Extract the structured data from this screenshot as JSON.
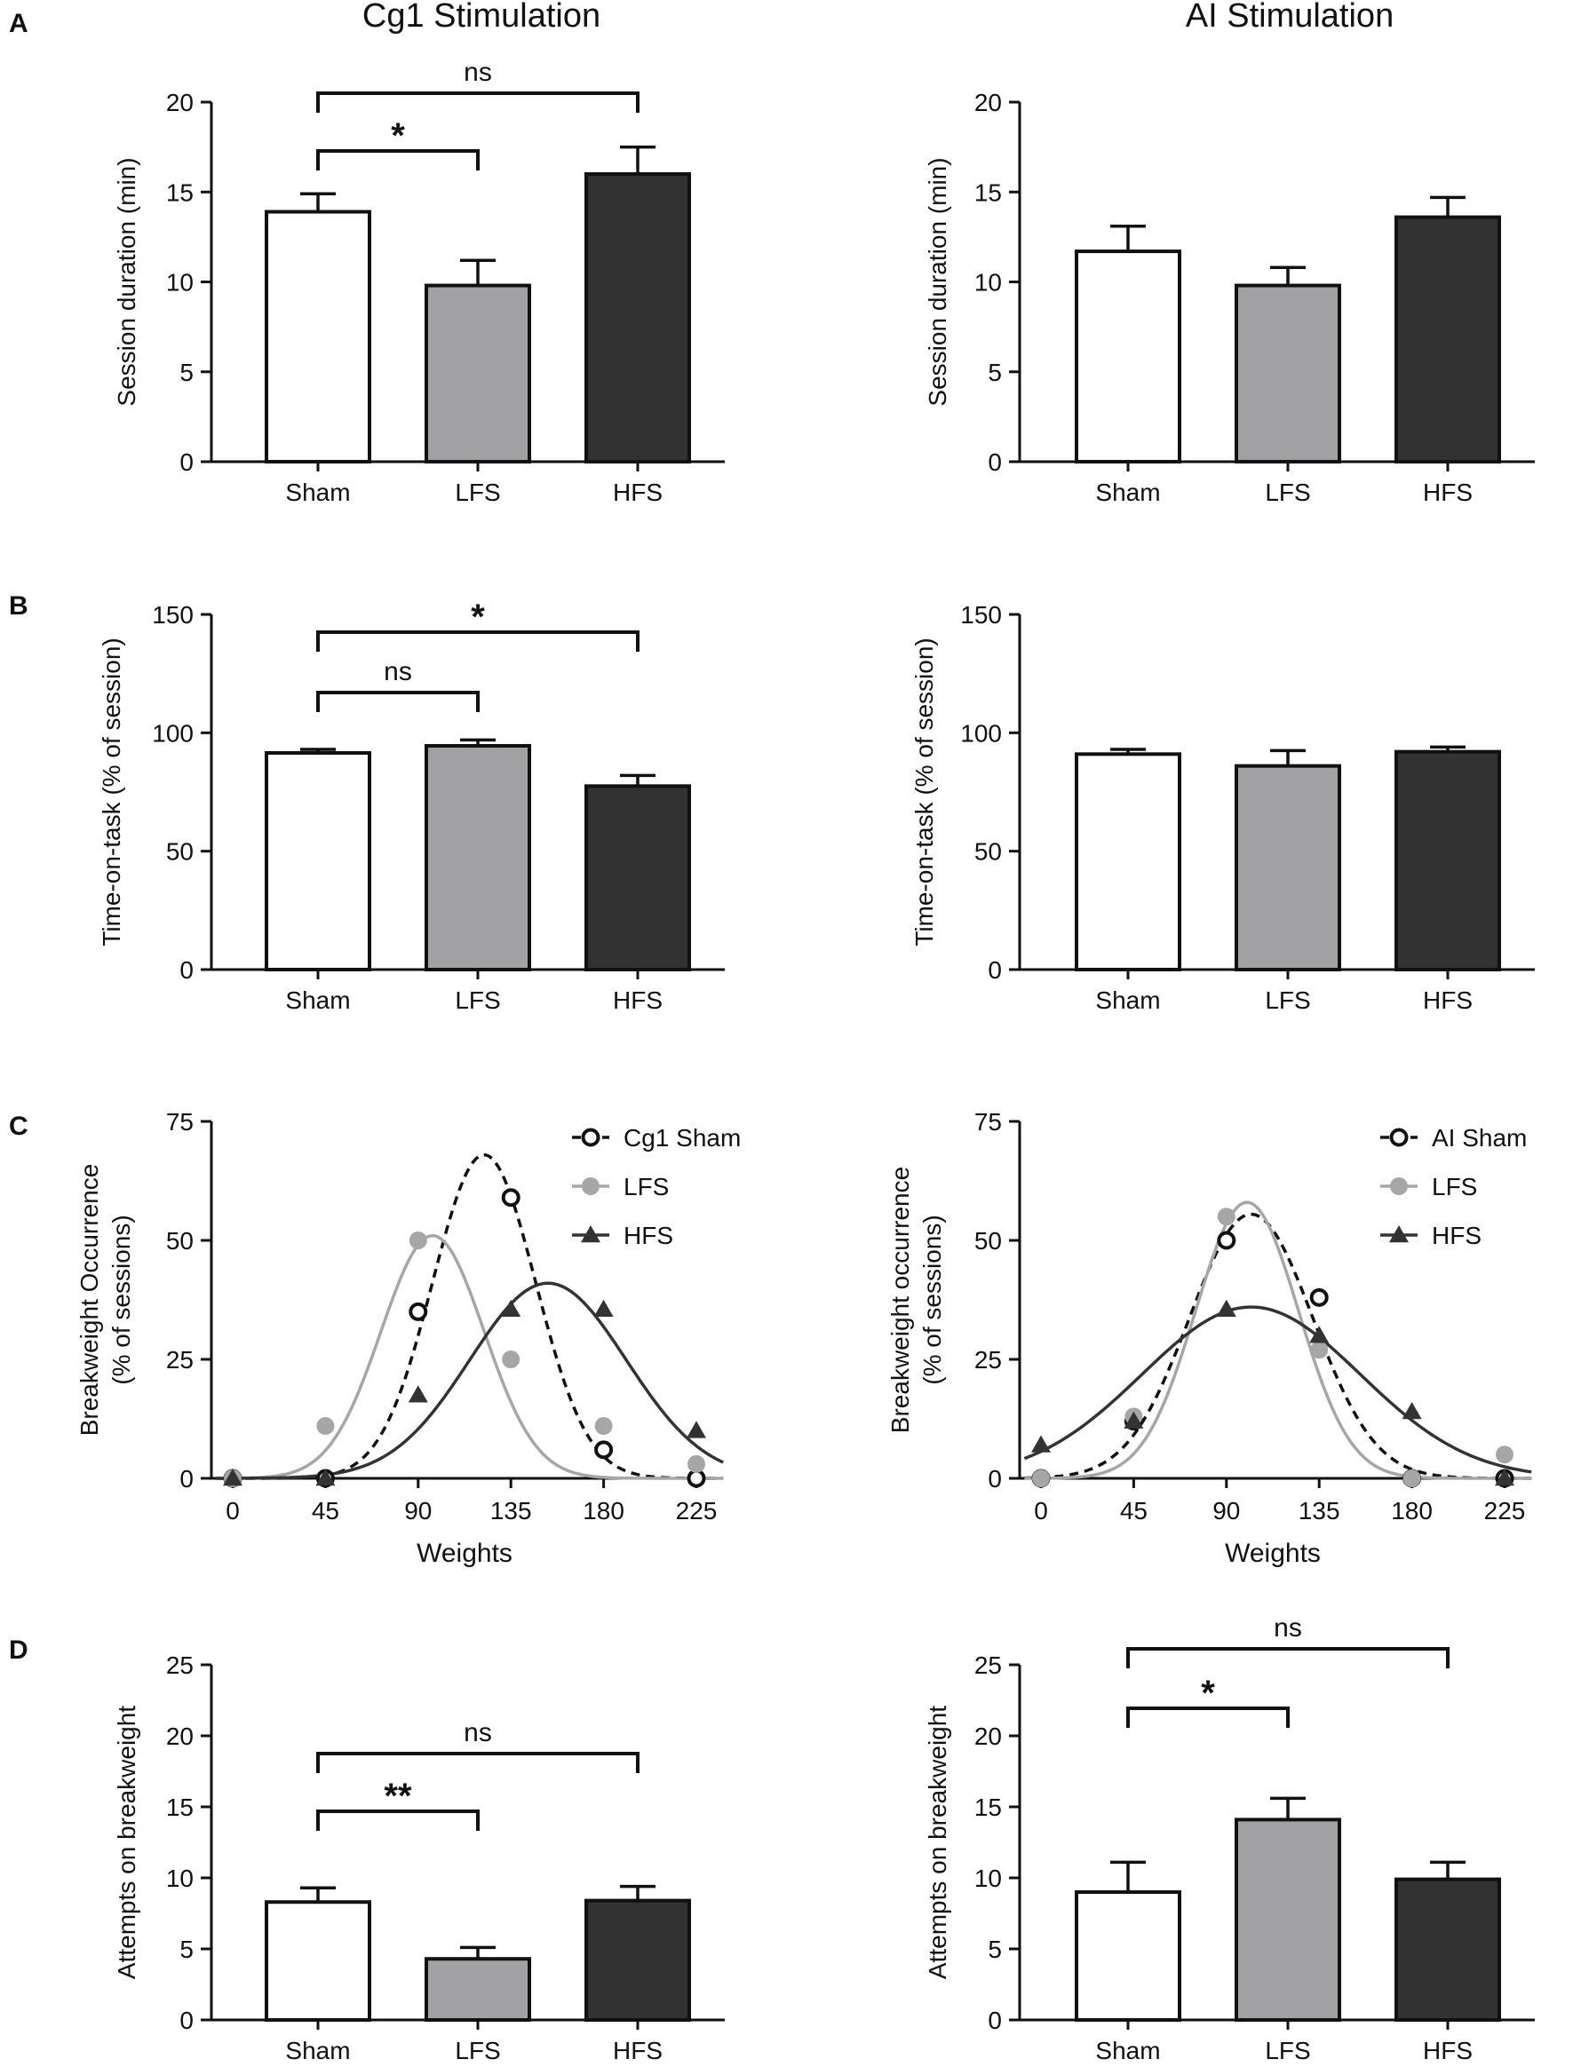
{
  "figure": {
    "column_titles": [
      "Cg1 Stimulation",
      "AI Stimulation"
    ],
    "panel_letters": [
      "A",
      "B",
      "C",
      "D"
    ]
  },
  "colors": {
    "sham_fill": "#ffffff",
    "lfs_fill": "#a2a2a5",
    "hfs_fill": "#323232",
    "axis": "#111111",
    "lfs_curve": "#a6a6a6",
    "hfs_curve": "#333333"
  },
  "chart_data": [
    {
      "id": "A-left",
      "type": "bar",
      "panel": "A",
      "column": "Cg1 Stimulation",
      "categories": [
        "Sham",
        "LFS",
        "HFS"
      ],
      "values": [
        13.9,
        9.8,
        16.0
      ],
      "errors": [
        1.0,
        1.4,
        1.5
      ],
      "ylabel": "Session duration (min)",
      "ylim": [
        0,
        20
      ],
      "yticks": [
        "0",
        "5",
        "10",
        "15",
        "20"
      ],
      "comparisons": [
        {
          "from": "Sham",
          "to": "LFS",
          "label": "*"
        },
        {
          "from": "Sham",
          "to": "HFS",
          "label": "ns"
        }
      ]
    },
    {
      "id": "A-right",
      "type": "bar",
      "panel": "A",
      "column": "AI Stimulation",
      "categories": [
        "Sham",
        "LFS",
        "HFS"
      ],
      "values": [
        11.7,
        9.8,
        13.6
      ],
      "errors": [
        1.4,
        1.0,
        1.1
      ],
      "ylabel": "Session duration (min)",
      "ylim": [
        0,
        20
      ],
      "yticks": [
        "0",
        "5",
        "10",
        "15",
        "20"
      ],
      "comparisons": []
    },
    {
      "id": "B-left",
      "type": "bar",
      "panel": "B",
      "column": "Cg1 Stimulation",
      "categories": [
        "Sham",
        "LFS",
        "HFS"
      ],
      "values": [
        91.5,
        94.5,
        77.5
      ],
      "errors": [
        1.5,
        2.5,
        4.5
      ],
      "ylabel": "Time-on-task  (% of session)",
      "ylim": [
        0,
        150
      ],
      "yticks": [
        "0",
        "50",
        "100",
        "150"
      ],
      "comparisons": [
        {
          "from": "Sham",
          "to": "LFS",
          "label": "ns"
        },
        {
          "from": "Sham",
          "to": "HFS",
          "label": "*"
        }
      ]
    },
    {
      "id": "B-right",
      "type": "bar",
      "panel": "B",
      "column": "AI Stimulation",
      "categories": [
        "Sham",
        "LFS",
        "HFS"
      ],
      "values": [
        91.0,
        86.0,
        92.0
      ],
      "errors": [
        2.0,
        6.5,
        2.0
      ],
      "ylabel": "Time-on-task  (% of session)",
      "ylim": [
        0,
        150
      ],
      "yticks": [
        "0",
        "50",
        "100",
        "150"
      ],
      "comparisons": []
    },
    {
      "id": "C-left",
      "type": "line",
      "panel": "C",
      "column": "Cg1 Stimulation",
      "x": [
        0,
        45,
        90,
        135,
        180,
        225
      ],
      "xticks": [
        "0",
        "45",
        "90",
        "135",
        "180",
        "225"
      ],
      "xlabel": "Weights",
      "ylabel": "Breakweight Occurrence",
      "ylabel2": "(% of sessions)",
      "ylim": [
        0,
        75
      ],
      "xlim": [
        -8,
        238
      ],
      "yticks": [
        "0",
        "25",
        "50",
        "75"
      ],
      "legend_position": "top-right",
      "series": [
        {
          "name": "Cg1 Sham",
          "marker": "open-circle",
          "line": "dashed",
          "values": [
            0,
            0,
            35,
            59,
            6,
            0
          ],
          "fit": {
            "amp": 68,
            "mu": 122,
            "sigma": 25
          }
        },
        {
          "name": "LFS",
          "marker": "gray-dot",
          "line": "solid-gray",
          "values": [
            0,
            11,
            50,
            25,
            11,
            3
          ],
          "fit": {
            "amp": 51,
            "mu": 97,
            "sigma": 25
          }
        },
        {
          "name": "HFS",
          "marker": "triangle",
          "line": "solid-dark",
          "values": [
            0,
            0,
            17.5,
            35.5,
            35.5,
            10
          ],
          "fit": {
            "amp": 41,
            "mu": 153,
            "sigma": 38
          }
        }
      ]
    },
    {
      "id": "C-right",
      "type": "line",
      "panel": "C",
      "column": "AI Stimulation",
      "x": [
        0,
        45,
        90,
        135,
        180,
        225
      ],
      "xticks": [
        "0",
        "45",
        "90",
        "135",
        "180",
        "225"
      ],
      "xlabel": "Weights",
      "ylabel": "Breakweight occurrence",
      "ylabel2": "(% of sessions)",
      "ylim": [
        0,
        75
      ],
      "xlim": [
        -8,
        238
      ],
      "yticks": [
        "0",
        "25",
        "50",
        "75"
      ],
      "legend_position": "top-right",
      "series": [
        {
          "name": "AI Sham",
          "marker": "open-circle",
          "line": "dashed",
          "values": [
            0,
            12,
            50,
            38,
            0,
            0
          ],
          "fit": {
            "amp": 55.5,
            "mu": 102,
            "sigma": 30
          }
        },
        {
          "name": "LFS",
          "marker": "gray-dot",
          "line": "solid-gray",
          "values": [
            0,
            13,
            55,
            27,
            0,
            5
          ],
          "fit": {
            "amp": 58,
            "mu": 100,
            "sigma": 25
          }
        },
        {
          "name": "HFS",
          "marker": "triangle",
          "line": "solid-dark",
          "values": [
            7,
            12,
            35.5,
            30,
            14,
            0
          ],
          "fit": {
            "amp": 36,
            "mu": 102,
            "sigma": 53
          }
        }
      ]
    },
    {
      "id": "D-left",
      "type": "bar",
      "panel": "D",
      "column": "Cg1 Stimulation",
      "categories": [
        "Sham",
        "LFS",
        "HFS"
      ],
      "values": [
        8.3,
        4.3,
        8.4
      ],
      "errors": [
        1.0,
        0.8,
        1.0
      ],
      "ylabel": "Attempts on  breakweight",
      "ylim": [
        0,
        25
      ],
      "yticks": [
        "0",
        "5",
        "10",
        "15",
        "20",
        "25"
      ],
      "comparisons": [
        {
          "from": "Sham",
          "to": "LFS",
          "label": "**"
        },
        {
          "from": "Sham",
          "to": "HFS",
          "label": "ns"
        }
      ]
    },
    {
      "id": "D-right",
      "type": "bar",
      "panel": "D",
      "column": "AI Stimulation",
      "categories": [
        "Sham",
        "LFS",
        "HFS"
      ],
      "values": [
        9.0,
        14.1,
        9.9
      ],
      "errors": [
        2.1,
        1.5,
        1.2
      ],
      "ylabel": "Attempts on  breakweight",
      "ylim": [
        0,
        25
      ],
      "yticks": [
        "0",
        "5",
        "10",
        "15",
        "20",
        "25"
      ],
      "comparisons": [
        {
          "from": "Sham",
          "to": "LFS",
          "label": "*"
        },
        {
          "from": "Sham",
          "to": "HFS",
          "label": "ns"
        }
      ]
    }
  ]
}
